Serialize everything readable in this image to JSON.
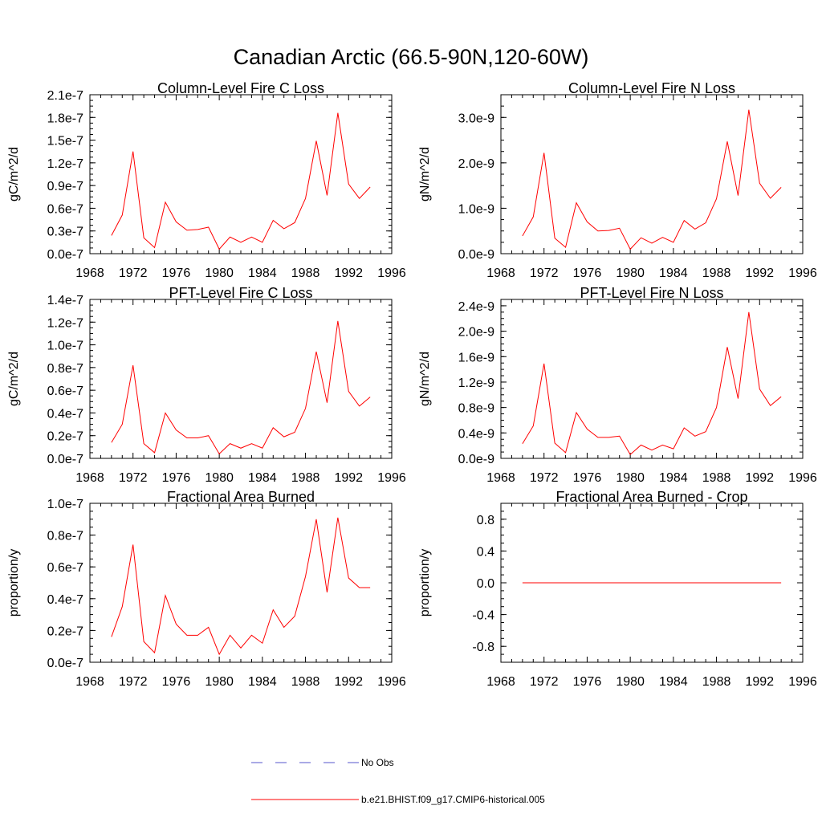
{
  "title": "Canadian Arctic (66.5-90N,120-60W)",
  "legend": {
    "obs_label": "No Obs",
    "obs_color": "#5555cc",
    "model_label": "b.e21.BHIST.f09_g17.CMIP6-historical.005",
    "model_color": "#ff0000"
  },
  "chart_data": [
    {
      "type": "line",
      "title": "Column-Level Fire C Loss",
      "ylabel": "gC/m^2/d",
      "xlim": [
        1968,
        1996
      ],
      "ylim": [
        0.0,
        2.1e-07
      ],
      "xticks": [
        1968,
        1972,
        1976,
        1980,
        1984,
        1988,
        1992,
        1996
      ],
      "xtick_labels": [
        "1968",
        "1972",
        "1976",
        "1980",
        "1984",
        "1988",
        "1992",
        "1996"
      ],
      "yticks": [
        0.0,
        3e-08,
        6e-08,
        9e-08,
        1.2e-07,
        1.5e-07,
        1.8e-07,
        2.1e-07
      ],
      "ytick_labels": [
        "0.0e-7",
        "0.3e-7",
        "0.6e-7",
        "0.9e-7",
        "1.2e-7",
        "1.5e-7",
        "1.8e-7",
        "2.1e-7"
      ],
      "x": [
        1970,
        1971,
        1972,
        1973,
        1974,
        1975,
        1976,
        1977,
        1978,
        1979,
        1980,
        1981,
        1982,
        1983,
        1984,
        1985,
        1986,
        1987,
        1988,
        1989,
        1990,
        1991,
        1992,
        1993,
        1994
      ],
      "series": [
        {
          "name": "b.e21.BHIST.f09_g17.CMIP6-historical.005",
          "values": [
            2.4e-08,
            5.1e-08,
            1.35e-07,
            2.1e-08,
            8e-09,
            6.8e-08,
            4.2e-08,
            3.1e-08,
            3.2e-08,
            3.5e-08,
            6e-09,
            2.2e-08,
            1.5e-08,
            2.2e-08,
            1.5e-08,
            4.4e-08,
            3.3e-08,
            4.1e-08,
            7.3e-08,
            1.49e-07,
            7.7e-08,
            1.86e-07,
            9.2e-08,
            7.3e-08,
            8.8e-08
          ]
        }
      ]
    },
    {
      "type": "line",
      "title": "Column-Level Fire N Loss",
      "ylabel": "gN/m^2/d",
      "xlim": [
        1968,
        1996
      ],
      "ylim": [
        0.0,
        3.5e-09
      ],
      "xticks": [
        1968,
        1972,
        1976,
        1980,
        1984,
        1988,
        1992,
        1996
      ],
      "xtick_labels": [
        "1968",
        "1972",
        "1976",
        "1980",
        "1984",
        "1988",
        "1992",
        "1996"
      ],
      "yticks": [
        0.0,
        1e-09,
        2e-09,
        3e-09
      ],
      "ytick_labels": [
        "0.0e-9",
        "1.0e-9",
        "2.0e-9",
        "3.0e-9"
      ],
      "x": [
        1970,
        1971,
        1972,
        1973,
        1974,
        1975,
        1976,
        1977,
        1978,
        1979,
        1980,
        1981,
        1982,
        1983,
        1984,
        1985,
        1986,
        1987,
        1988,
        1989,
        1990,
        1991,
        1992,
        1993,
        1994
      ],
      "series": [
        {
          "name": "b.e21.BHIST.f09_g17.CMIP6-historical.005",
          "values": [
            3.9e-10,
            8.1e-10,
            2.22e-09,
            3.4e-10,
            1.4e-10,
            1.12e-09,
            7e-10,
            5e-10,
            5.1e-10,
            5.6e-10,
            1e-10,
            3.5e-10,
            2.3e-10,
            3.6e-10,
            2.5e-10,
            7.3e-10,
            5.4e-10,
            6.8e-10,
            1.21e-09,
            2.47e-09,
            1.28e-09,
            3.17e-09,
            1.55e-09,
            1.22e-09,
            1.46e-09
          ]
        }
      ]
    },
    {
      "type": "line",
      "title": "PFT-Level Fire C Loss",
      "ylabel": "gC/m^2/d",
      "xlim": [
        1968,
        1996
      ],
      "ylim": [
        0.0,
        1.4e-07
      ],
      "xticks": [
        1968,
        1972,
        1976,
        1980,
        1984,
        1988,
        1992,
        1996
      ],
      "xtick_labels": [
        "1968",
        "1972",
        "1976",
        "1980",
        "1984",
        "1988",
        "1992",
        "1996"
      ],
      "yticks": [
        0.0,
        2e-08,
        4e-08,
        6e-08,
        8e-08,
        1e-07,
        1.2e-07,
        1.4e-07
      ],
      "ytick_labels": [
        "0.0e-7",
        "0.2e-7",
        "0.4e-7",
        "0.6e-7",
        "0.8e-7",
        "1.0e-7",
        "1.2e-7",
        "1.4e-7"
      ],
      "x": [
        1970,
        1971,
        1972,
        1973,
        1974,
        1975,
        1976,
        1977,
        1978,
        1979,
        1980,
        1981,
        1982,
        1983,
        1984,
        1985,
        1986,
        1987,
        1988,
        1989,
        1990,
        1991,
        1992,
        1993,
        1994
      ],
      "series": [
        {
          "name": "b.e21.BHIST.f09_g17.CMIP6-historical.005",
          "values": [
            1.4e-08,
            3e-08,
            8.2e-08,
            1.3e-08,
            5e-09,
            4e-08,
            2.5e-08,
            1.8e-08,
            1.8e-08,
            2e-08,
            4e-09,
            1.3e-08,
            9e-09,
            1.3e-08,
            9e-09,
            2.7e-08,
            1.9e-08,
            2.3e-08,
            4.4e-08,
            9.4e-08,
            4.9e-08,
            1.21e-07,
            5.9e-08,
            4.6e-08,
            5.4e-08
          ]
        }
      ]
    },
    {
      "type": "line",
      "title": "PFT-Level Fire N Loss",
      "ylabel": "gN/m^2/d",
      "xlim": [
        1968,
        1996
      ],
      "ylim": [
        0.0,
        2.5e-09
      ],
      "xticks": [
        1968,
        1972,
        1976,
        1980,
        1984,
        1988,
        1992,
        1996
      ],
      "xtick_labels": [
        "1968",
        "1972",
        "1976",
        "1980",
        "1984",
        "1988",
        "1992",
        "1996"
      ],
      "yticks": [
        0.0,
        4e-10,
        8e-10,
        1.2e-09,
        1.6e-09,
        2e-09,
        2.4e-09
      ],
      "ytick_labels": [
        "0.0e-9",
        "0.4e-9",
        "0.8e-9",
        "1.2e-9",
        "1.6e-9",
        "2.0e-9",
        "2.4e-9"
      ],
      "x": [
        1970,
        1971,
        1972,
        1973,
        1974,
        1975,
        1976,
        1977,
        1978,
        1979,
        1980,
        1981,
        1982,
        1983,
        1984,
        1985,
        1986,
        1987,
        1988,
        1989,
        1990,
        1991,
        1992,
        1993,
        1994
      ],
      "series": [
        {
          "name": "b.e21.BHIST.f09_g17.CMIP6-historical.005",
          "values": [
            2.3e-10,
            5.1e-10,
            1.49e-09,
            2.4e-10,
            9e-11,
            7.2e-10,
            4.6e-10,
            3.3e-10,
            3.3e-10,
            3.5e-10,
            6e-11,
            2.1e-10,
            1.3e-10,
            2.1e-10,
            1.5e-10,
            4.8e-10,
            3.5e-10,
            4.2e-10,
            8e-10,
            1.75e-09,
            9.4e-10,
            2.3e-09,
            1.09e-09,
            8.3e-10,
            9.7e-10
          ]
        }
      ]
    },
    {
      "type": "line",
      "title": "Fractional Area Burned",
      "ylabel": "proportion/y",
      "xlim": [
        1968,
        1996
      ],
      "ylim": [
        0.0,
        1e-07
      ],
      "xticks": [
        1968,
        1972,
        1976,
        1980,
        1984,
        1988,
        1992,
        1996
      ],
      "xtick_labels": [
        "1968",
        "1972",
        "1976",
        "1980",
        "1984",
        "1988",
        "1992",
        "1996"
      ],
      "yticks": [
        0.0,
        2e-08,
        4e-08,
        6e-08,
        8e-08,
        1e-07
      ],
      "ytick_labels": [
        "0.0e-7",
        "0.2e-7",
        "0.4e-7",
        "0.6e-7",
        "0.8e-7",
        "1.0e-7"
      ],
      "x": [
        1970,
        1971,
        1972,
        1973,
        1974,
        1975,
        1976,
        1977,
        1978,
        1979,
        1980,
        1981,
        1982,
        1983,
        1984,
        1985,
        1986,
        1987,
        1988,
        1989,
        1990,
        1991,
        1992,
        1993,
        1994
      ],
      "series": [
        {
          "name": "b.e21.BHIST.f09_g17.CMIP6-historical.005",
          "values": [
            1.6e-08,
            3.5e-08,
            7.4e-08,
            1.3e-08,
            6e-09,
            4.2e-08,
            2.4e-08,
            1.7e-08,
            1.7e-08,
            2.2e-08,
            5e-09,
            1.7e-08,
            9e-09,
            1.7e-08,
            1.2e-08,
            3.3e-08,
            2.2e-08,
            2.9e-08,
            5.4e-08,
            9e-08,
            4.4e-08,
            9.1e-08,
            5.3e-08,
            4.7e-08,
            4.7e-08
          ]
        }
      ]
    },
    {
      "type": "line",
      "title": "Fractional Area Burned - Crop",
      "ylabel": "proportion/y",
      "xlim": [
        1968,
        1996
      ],
      "ylim": [
        -1.0,
        1.0
      ],
      "xticks": [
        1968,
        1972,
        1976,
        1980,
        1984,
        1988,
        1992,
        1996
      ],
      "xtick_labels": [
        "1968",
        "1972",
        "1976",
        "1980",
        "1984",
        "1988",
        "1992",
        "1996"
      ],
      "yticks": [
        -0.8,
        -0.4,
        0.0,
        0.4,
        0.8
      ],
      "ytick_labels": [
        "-0.8",
        "-0.4",
        "0.0",
        "0.4",
        "0.8"
      ],
      "x": [
        1970,
        1971,
        1972,
        1973,
        1974,
        1975,
        1976,
        1977,
        1978,
        1979,
        1980,
        1981,
        1982,
        1983,
        1984,
        1985,
        1986,
        1987,
        1988,
        1989,
        1990,
        1991,
        1992,
        1993,
        1994
      ],
      "series": [
        {
          "name": "b.e21.BHIST.f09_g17.CMIP6-historical.005",
          "values": [
            0,
            0,
            0,
            0,
            0,
            0,
            0,
            0,
            0,
            0,
            0,
            0,
            0,
            0,
            0,
            0,
            0,
            0,
            0,
            0,
            0,
            0,
            0,
            0,
            0
          ]
        }
      ]
    }
  ]
}
